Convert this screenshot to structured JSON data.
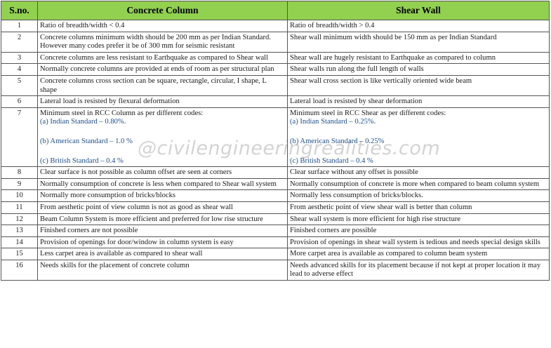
{
  "table": {
    "headers": {
      "sno": "S.no.",
      "column": "Concrete Column",
      "wall": "Shear Wall"
    },
    "rows": [
      {
        "sno": "1",
        "column": [
          "Ratio of breadth/width < 0.4"
        ],
        "wall": [
          "Ratio of breadth/width > 0.4"
        ]
      },
      {
        "sno": "2",
        "column": [
          "Concrete columns minimum width should be 200 mm as per Indian Standard. However many codes prefer it be of 300 mm for seismic resistant"
        ],
        "wall": [
          "Shear wall minimum width should be 150 mm as per Indian Standard"
        ]
      },
      {
        "sno": "3",
        "column": [
          "Concrete columns are less resistant to Earthquake as compared to Shear wall"
        ],
        "wall": [
          "Shear wall are hugely resistant to Earthquake as compared to column"
        ]
      },
      {
        "sno": "4",
        "column": [
          "Normally concrete columns are provided at ends of room as per structural plan"
        ],
        "wall": [
          "Shear walls run along the full length of walls"
        ]
      },
      {
        "sno": "5",
        "column": [
          "Concrete columns cross section can be square, rectangle, circular, I shape, L shape"
        ],
        "wall": [
          "Shear wall cross section is like vertically oriented wide beam"
        ]
      },
      {
        "sno": "6",
        "column": [
          "Lateral load is resisted by flexural deformation"
        ],
        "wall": [
          "Lateral load is resisted by shear deformation"
        ]
      },
      {
        "sno": "7",
        "column": [
          "Minimum steel in RCC Column as per different codes:",
          "(a) Indian Standard – 0.80%.",
          "(b) American Standard – 1.0 %",
          "(c) British Standard – 0.4 %"
        ],
        "wall": [
          "Minimum steel in RCC Shear as per different codes:",
          "(a) Indian Standard – 0.25%.",
          "(b) American Standard – 0.25%",
          "(c) British Standard – 0.4 %"
        ]
      },
      {
        "sno": "8",
        "column": [
          "Clear surface is not possible as column offset are seen at corners"
        ],
        "wall": [
          "Clear surface without any offset is possible"
        ]
      },
      {
        "sno": "9",
        "column": [
          "Normally consumption of concrete is less when compared to Shear wall system"
        ],
        "wall": [
          "Normally consumption of concrete is more when compared to beam column system"
        ]
      },
      {
        "sno": "10",
        "column": [
          "Normally more consumption of bricks/blocks"
        ],
        "wall": [
          "Normally less consumption of bricks/blocks."
        ]
      },
      {
        "sno": "11",
        "column": [
          "From aesthetic point of view column is not as good as shear wall"
        ],
        "wall": [
          "From aesthetic point of view shear wall is better than column"
        ]
      },
      {
        "sno": "12",
        "column": [
          "Beam Column System is more efficient and preferred for low rise structure"
        ],
        "wall": [
          "Shear wall system is more efficient for high rise structure"
        ]
      },
      {
        "sno": "13",
        "column": [
          "Finished corners are not possible"
        ],
        "wall": [
          "Finished corners are possible"
        ]
      },
      {
        "sno": "14",
        "column": [
          "Provision of openings for door/window in column system is easy"
        ],
        "wall": [
          "Provision of openings in shear wall system is tedious and needs special design skills"
        ]
      },
      {
        "sno": "15",
        "column": [
          "Less carpet area is available as compared to shear wall"
        ],
        "wall": [
          "More carpet area is available as compared to column beam system"
        ]
      },
      {
        "sno": "16",
        "column": [
          "Needs skills for the placement of concrete column"
        ],
        "wall": [
          "Needs advanced skills for its placement because if not kept at proper location it may lead to adverse effect"
        ]
      }
    ]
  },
  "watermark": "@civilengineeringrealities.com",
  "colors": {
    "header_bg": "#92d050",
    "list_text": "#1f4e8c",
    "border": "#555555"
  }
}
